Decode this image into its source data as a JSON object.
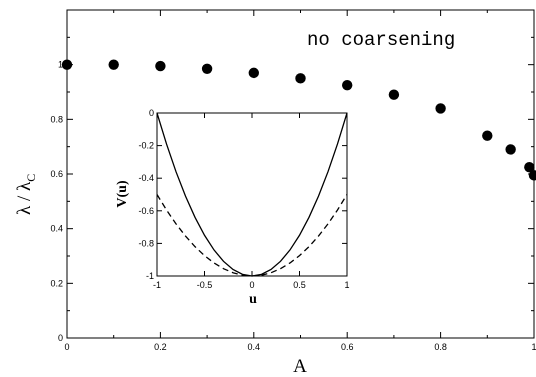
{
  "chart_data": [
    {
      "type": "scatter",
      "annotation": "no coarsening",
      "xlabel": "A",
      "ylabel": "λ / λ",
      "ylabel_subscript": "C",
      "xlim": [
        0,
        1
      ],
      "ylim": [
        0,
        1.2
      ],
      "x_ticks": [
        "0",
        "0.2",
        "0.4",
        "0.6",
        "0.8",
        "1"
      ],
      "y_ticks": [
        "0",
        "0.2",
        "0.4",
        "0.6",
        "0.8",
        "1"
      ],
      "marker": "filled-circle",
      "series": [
        {
          "x": [
            0,
            0.1,
            0.2,
            0.3,
            0.4,
            0.5,
            0.6,
            0.7,
            0.8,
            0.9,
            0.95,
            0.99,
            1.0
          ],
          "y": [
            1.0,
            1.0,
            0.995,
            0.985,
            0.97,
            0.95,
            0.925,
            0.89,
            0.84,
            0.74,
            0.69,
            0.625,
            0.595
          ]
        }
      ]
    },
    {
      "type": "line",
      "xlabel": "u",
      "ylabel": "V(u)",
      "xlim": [
        -1,
        1
      ],
      "ylim": [
        -1,
        0
      ],
      "x_ticks": [
        "-1",
        "-0.5",
        "0",
        "0.5",
        "1"
      ],
      "y_ticks": [
        "0",
        "-0.2",
        "-0.4",
        "-0.6",
        "-0.8",
        "-1"
      ],
      "series": [
        {
          "style": "solid",
          "x": [
            -1,
            -0.9,
            -0.8,
            -0.7,
            -0.6,
            -0.5,
            -0.4,
            -0.3,
            -0.2,
            -0.1,
            0,
            0.1,
            0.2,
            0.3,
            0.4,
            0.5,
            0.6,
            0.7,
            0.8,
            0.9,
            1
          ],
          "y": [
            0,
            -0.19,
            -0.36,
            -0.51,
            -0.64,
            -0.75,
            -0.84,
            -0.91,
            -0.96,
            -0.99,
            -1,
            -0.99,
            -0.96,
            -0.91,
            -0.84,
            -0.75,
            -0.64,
            -0.51,
            -0.36,
            -0.19,
            0
          ]
        },
        {
          "style": "dashed",
          "x": [
            -1,
            -0.9,
            -0.8,
            -0.7,
            -0.6,
            -0.5,
            -0.4,
            -0.3,
            -0.2,
            -0.1,
            0,
            0.1,
            0.2,
            0.3,
            0.4,
            0.5,
            0.6,
            0.7,
            0.8,
            0.9,
            1
          ],
          "y": [
            -0.5,
            -0.595,
            -0.68,
            -0.755,
            -0.82,
            -0.875,
            -0.92,
            -0.955,
            -0.98,
            -0.995,
            -1,
            -0.995,
            -0.98,
            -0.955,
            -0.92,
            -0.875,
            -0.82,
            -0.755,
            -0.68,
            -0.595,
            -0.5
          ]
        }
      ]
    }
  ],
  "colors": {
    "ink": "#000000",
    "background": "#ffffff"
  }
}
